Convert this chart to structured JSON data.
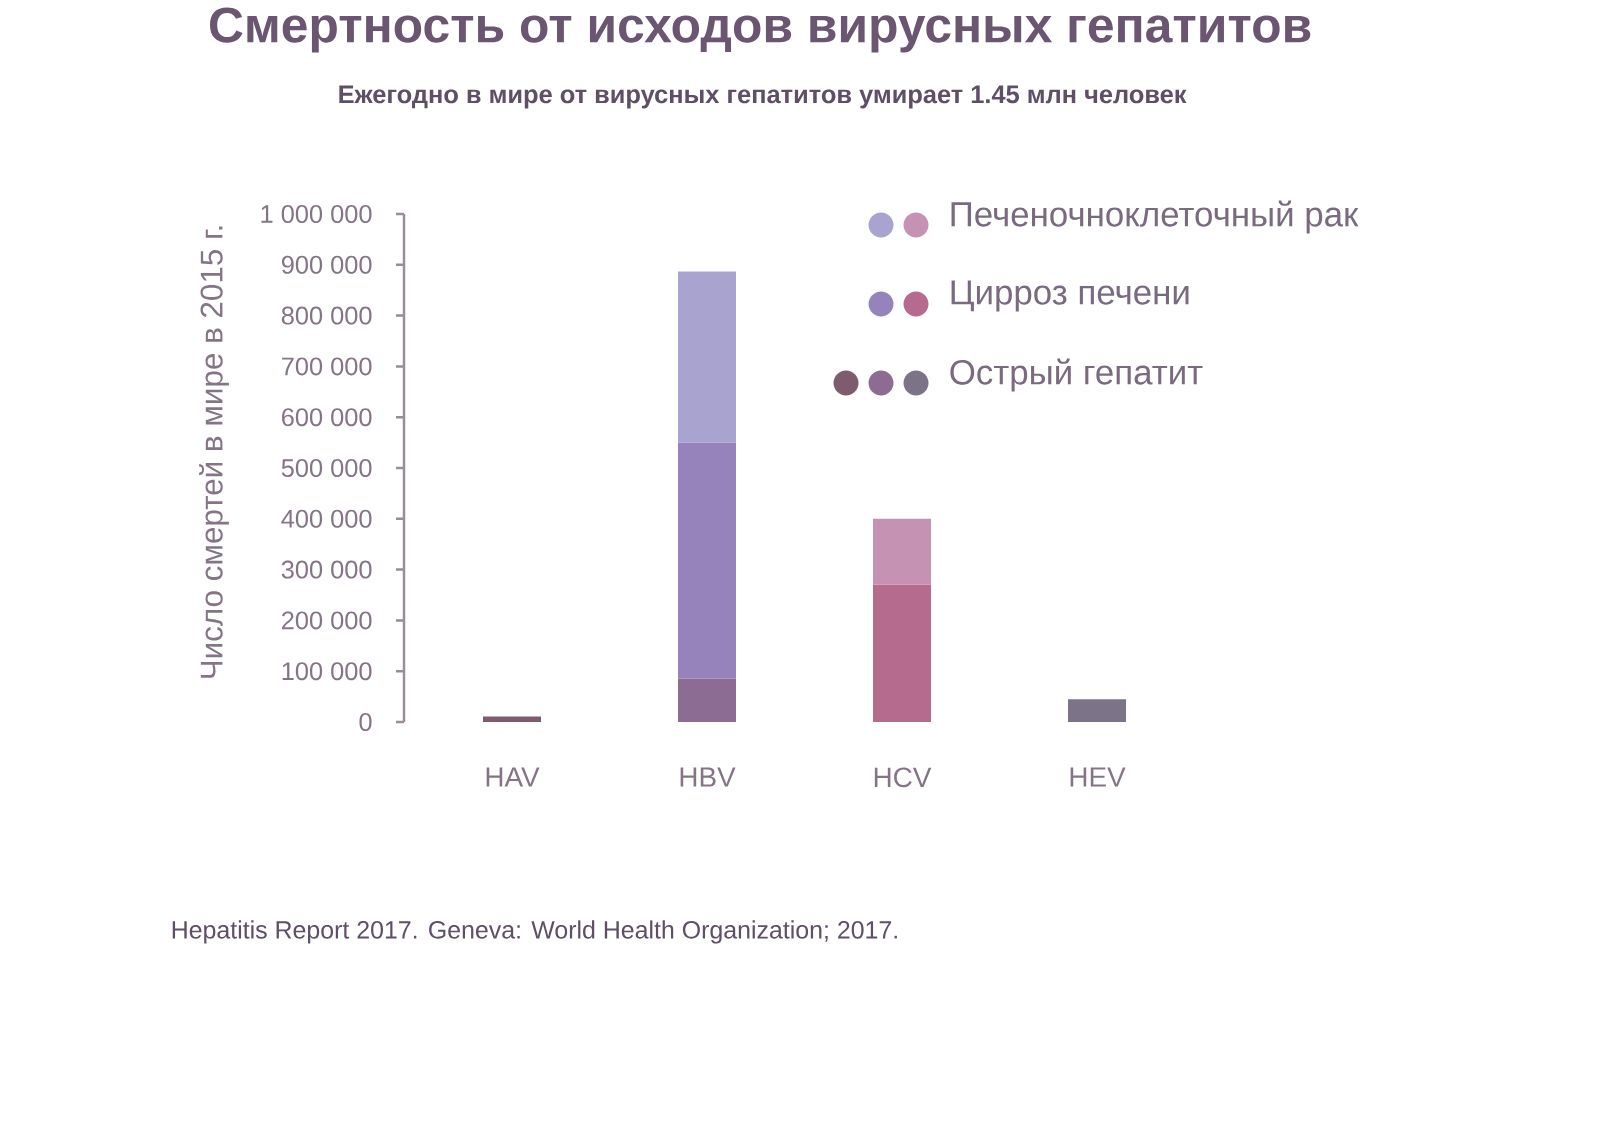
{
  "chart_data": {
    "type": "bar",
    "stacked": true,
    "title": "Смертность от исходов вирусных гепатитов",
    "subtitle": "Ежегодно в мире от вирусных гепатитов умирает 1.45 млн человек",
    "ylabel": "Число смертей в мире в 2015 г.",
    "annotations": [
      "Hepatitis Report 2017. Geneva: World Health Organization; 2017."
    ],
    "categories": [
      "HAV",
      "HBV",
      "HCV",
      "HEV"
    ],
    "series": [
      {
        "name": "Острый гепатит",
        "values": [
          11000,
          85000,
          null,
          45000
        ],
        "colors": [
          "#7e5c70",
          "#8c6c92",
          null,
          "#7d7389"
        ]
      },
      {
        "name": "Цирроз печени",
        "values": [
          null,
          465000,
          270000,
          null
        ],
        "colors": [
          null,
          "#9683bb",
          "#b56b8e",
          null
        ]
      },
      {
        "name": "Печеночноклеточный рак",
        "values": [
          null,
          337000,
          130000,
          null
        ],
        "colors": [
          null,
          "#a8a4cf",
          "#c692b4",
          null
        ]
      }
    ],
    "ylim": [
      0,
      1000000
    ],
    "yticks": [
      {
        "value": 0,
        "label": "0"
      },
      {
        "value": 100000,
        "label": "100 000"
      },
      {
        "value": 200000,
        "label": "200 000"
      },
      {
        "value": 300000,
        "label": "300 000"
      },
      {
        "value": 400000,
        "label": "400 000"
      },
      {
        "value": 500000,
        "label": "500 000"
      },
      {
        "value": 600000,
        "label": "600 000"
      },
      {
        "value": 700000,
        "label": "700 000"
      },
      {
        "value": 800000,
        "label": "800 000"
      },
      {
        "value": 900000,
        "label": "900 000"
      },
      {
        "value": 1000000,
        "label": "1 000 000"
      }
    ],
    "legend": "top right"
  }
}
